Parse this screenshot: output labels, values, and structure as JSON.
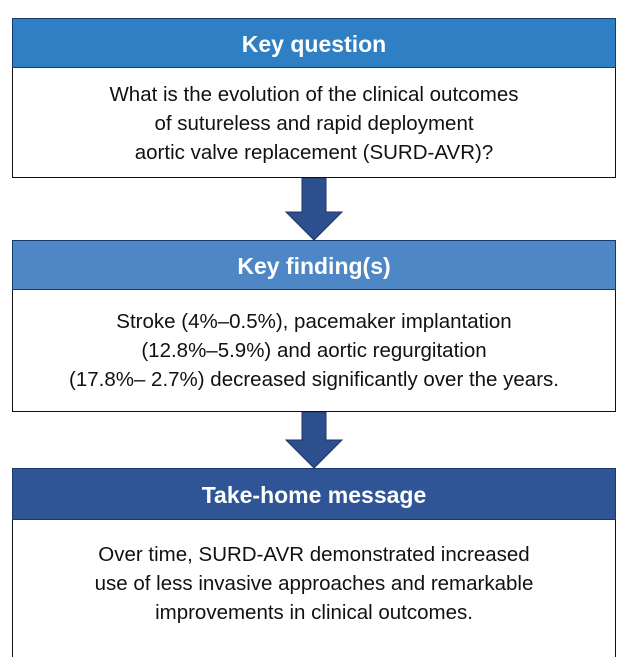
{
  "sections": [
    {
      "title": "Key question",
      "lines": [
        "What is the evolution of the clinical outcomes",
        "of sutureless and rapid deployment",
        "aortic valve replacement (SURD-AVR)?"
      ]
    },
    {
      "title": "Key finding(s)",
      "lines": [
        "Stroke (4%–0.5%), pacemaker implantation",
        "(12.8%–5.9%) and aortic regurgitation",
        "(17.8%– 2.7%) decreased significantly over the years."
      ]
    },
    {
      "title": "Take-home message",
      "lines": [
        "Over time, SURD-AVR demonstrated increased",
        "use of less invasive approaches and remarkable",
        "improvements in clinical outcomes."
      ]
    }
  ]
}
